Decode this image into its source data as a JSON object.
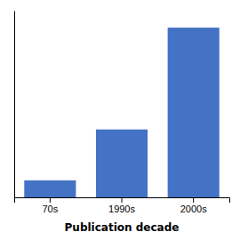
{
  "chart_data": {
    "type": "bar",
    "categories": [
      "70s",
      "1990s",
      "2000s"
    ],
    "values": [
      1,
      4,
      10
    ],
    "color": "#4472C4",
    "xlabel": "Publication decade",
    "ylim": [
      0,
      11
    ],
    "grid": false,
    "tick_labels": "x"
  }
}
